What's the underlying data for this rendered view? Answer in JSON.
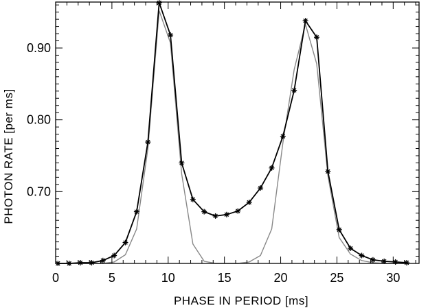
{
  "chart_data": {
    "type": "line",
    "title": "",
    "xlabel": "PHASE IN PERIOD [ms]",
    "ylabel": "PHOTON RATE [per ms]",
    "xlim": [
      0,
      32.3
    ],
    "ylim": [
      0.6,
      0.964
    ],
    "x_ticks": [
      0,
      5,
      10,
      15,
      20,
      25,
      30
    ],
    "y_ticks": [
      0.7,
      0.8,
      0.9
    ],
    "x_tick_labels": [
      "0",
      "5",
      "10",
      "15",
      "20",
      "25",
      "30"
    ],
    "y_tick_labels": [
      "0.70",
      "0.80",
      "0.90"
    ],
    "grid": false,
    "legend": "none",
    "series": [
      {
        "style": "black-line-asterisk-markers",
        "color": "#000000",
        "x": [
          0.2,
          1.2,
          2.2,
          3.2,
          4.2,
          5.2,
          6.2,
          7.2,
          8.2,
          9.2,
          10.2,
          11.2,
          12.2,
          13.2,
          14.2,
          15.2,
          16.2,
          17.2,
          18.2,
          19.2,
          20.2,
          21.2,
          22.2,
          23.2,
          24.2,
          25.2,
          26.2,
          27.2,
          28.2,
          29.2,
          30.2,
          31.2
        ],
        "y": [
          0.6,
          0.6,
          0.601,
          0.601,
          0.604,
          0.611,
          0.629,
          0.672,
          0.769,
          0.963,
          0.918,
          0.74,
          0.689,
          0.672,
          0.666,
          0.668,
          0.673,
          0.685,
          0.705,
          0.733,
          0.777,
          0.841,
          0.938,
          0.915,
          0.728,
          0.647,
          0.621,
          0.611,
          0.605,
          0.603,
          0.602,
          0.601
        ]
      },
      {
        "style": "gray-line",
        "color": "#888888",
        "x": [
          0.2,
          1.2,
          2.2,
          3.2,
          4.2,
          5.2,
          6.2,
          7.2,
          8.2,
          9.2,
          10.2,
          11.2,
          12.2,
          13.2,
          14.2,
          15.2,
          16.2,
          17.2,
          18.2,
          19.2,
          20.2,
          21.2,
          22.2,
          23.2,
          24.2,
          25.2,
          26.2,
          27.2,
          28.2,
          29.2,
          30.2,
          31.2
        ],
        "y": [
          0.6,
          0.6,
          0.6,
          0.6,
          0.6,
          0.602,
          0.612,
          0.648,
          0.76,
          0.952,
          0.907,
          0.725,
          0.627,
          0.603,
          0.6,
          0.6,
          0.6,
          0.602,
          0.611,
          0.648,
          0.768,
          0.87,
          0.933,
          0.878,
          0.722,
          0.636,
          0.613,
          0.604,
          0.601,
          0.6,
          0.6,
          0.6
        ]
      }
    ]
  }
}
